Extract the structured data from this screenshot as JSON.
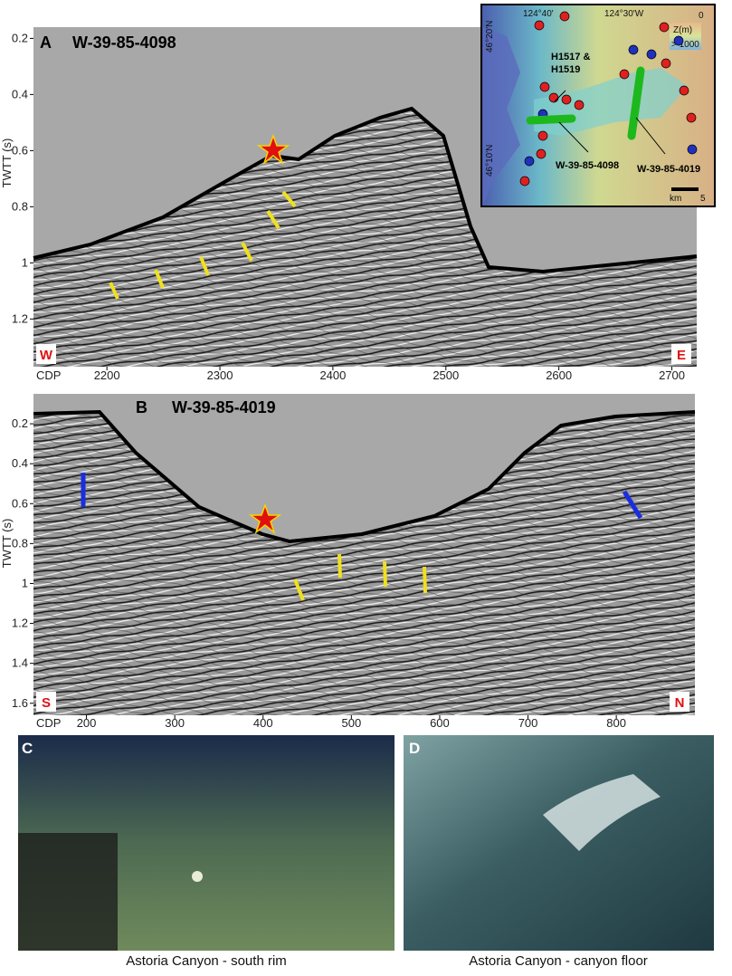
{
  "panel_a": {
    "letter": "A",
    "title": "W-39-85-4098",
    "y_label": "TWTT (s)",
    "x_label": "CDP",
    "left": "W",
    "right": "E",
    "ylim": [
      0.16,
      1.37
    ],
    "yticks": [
      0.2,
      0.4,
      0.6,
      0.8,
      1,
      1.2
    ],
    "xlim": [
      2135,
      2722
    ],
    "xticks": [
      2200,
      2300,
      2400,
      2500,
      2600,
      2700
    ]
  },
  "panel_b": {
    "letter": "B",
    "title": "W-39-85-4019",
    "y_label": "TWTT (s)",
    "x_label": "CDP",
    "left": "S",
    "right": "N",
    "ylim": [
      0.05,
      1.66
    ],
    "yticks": [
      0.2,
      0.4,
      0.6,
      0.8,
      1,
      1.2,
      1.4,
      1.6
    ],
    "xlim": [
      140,
      889
    ],
    "xticks": [
      200,
      300,
      400,
      500,
      600,
      700,
      800
    ]
  },
  "map": {
    "lon_left": "124°40'",
    "lon_right": "124°30'W",
    "lat_top": "46°20'N",
    "lat_bottom": "46°10'N",
    "depth_top": "0",
    "depth_title": "Z(m)",
    "depth_bottom": "> 1000",
    "site_line1": "H1517 &",
    "site_line2": "H1519",
    "line_a": "W-39-85-4098",
    "line_b": "W-39-85-4019",
    "scale_unit": "km",
    "scale_value": "5"
  },
  "photos": [
    {
      "letter": "C",
      "caption": "Astoria Canyon - south rim"
    },
    {
      "letter": "D",
      "caption": "Astoria Canyon - canyon floor"
    }
  ]
}
